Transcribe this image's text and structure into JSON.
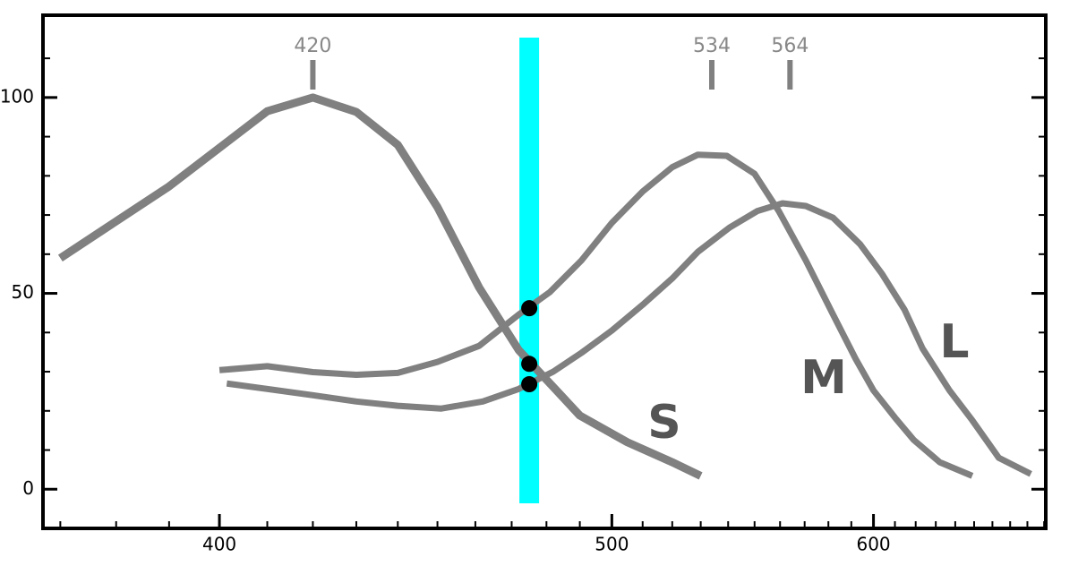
{
  "chart_data": {
    "type": "line",
    "x_scale": "reciprocal",
    "xlim": [
      367,
      691
    ],
    "ylim": [
      -10,
      121
    ],
    "xticks": [
      400,
      500,
      600
    ],
    "xticks_minor": [
      370,
      380,
      390,
      400,
      410,
      420,
      430,
      440,
      450,
      460,
      470,
      480,
      490,
      500,
      510,
      520,
      530,
      540,
      550,
      560,
      570,
      580,
      590,
      600,
      610,
      620,
      630,
      640,
      650,
      660,
      670,
      680,
      690
    ],
    "yticks": [
      0,
      50,
      100
    ],
    "yticks_minor": [
      0,
      10,
      20,
      30,
      40,
      50,
      60,
      70,
      80,
      90,
      100,
      110
    ],
    "peaks": [
      420,
      534,
      564
    ],
    "highlight": {
      "x": 475,
      "color": "#00ffff"
    },
    "series": [
      {
        "name": "S",
        "color": "#808080",
        "x": [
          370,
          390,
          410,
          420,
          430,
          440,
          450,
          461,
          472,
          482,
          490,
          505,
          520,
          530
        ],
        "values": [
          59,
          77.3,
          96.5,
          100,
          96.3,
          87.9,
          72,
          51.5,
          35.5,
          26.1,
          18.8,
          12,
          6.9,
          3.4
        ],
        "marker": 32
      },
      {
        "name": "M",
        "color": "#808080",
        "x": [
          400,
          410,
          420,
          430,
          440,
          450,
          461,
          472,
          481,
          490.5,
          500,
          510,
          520,
          529,
          539.5,
          550,
          559.5,
          570.5,
          582,
          592,
          600,
          610,
          619,
          632,
          649
        ],
        "values": [
          30.4,
          31.4,
          29.9,
          29.2,
          29.7,
          32.5,
          36.6,
          44.6,
          50.3,
          58.4,
          68,
          76,
          82.2,
          85.4,
          85.1,
          80.5,
          71,
          58.4,
          44.6,
          33.2,
          25.2,
          18.3,
          12.6,
          6.9,
          3.4
        ],
        "marker": 46.2
      },
      {
        "name": "L",
        "color": "#808080",
        "x": [
          401.5,
          410,
          420,
          430,
          440,
          451,
          462,
          472,
          482,
          490.5,
          500,
          510.5,
          520,
          529,
          540.5,
          551,
          561,
          570.5,
          582,
          594,
          604,
          614.6,
          623.4,
          637,
          649,
          663.6,
          682
        ],
        "values": [
          27,
          25.6,
          24,
          22.4,
          21.3,
          20.6,
          22.4,
          25.6,
          30,
          34.8,
          40.5,
          47.4,
          53.8,
          60.6,
          66.8,
          71,
          73,
          72.3,
          69.3,
          62.5,
          54.9,
          45.8,
          35.9,
          25.2,
          17.6,
          8,
          3.9
        ],
        "marker": 26.8
      }
    ]
  }
}
